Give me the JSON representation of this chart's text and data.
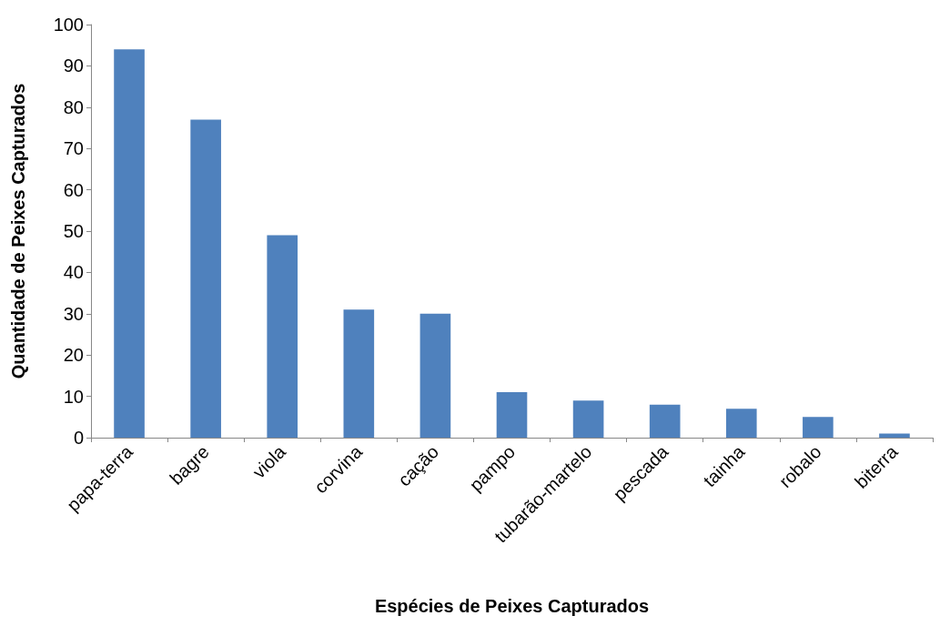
{
  "chart_data": {
    "type": "bar",
    "xlabel": "Espécies de Peixes Capturados",
    "ylabel": "Quantidade de Peixes Capturados",
    "categories": [
      "papa-terra",
      "bagre",
      "viola",
      "corvina",
      "cação",
      "pampo",
      "tubarão-martelo",
      "pescada",
      "tainha",
      "robalo",
      "biterra"
    ],
    "values": [
      94,
      77,
      49,
      31,
      30,
      11,
      9,
      8,
      7,
      5,
      1
    ],
    "color": "#4f81bd",
    "ylim": [
      0,
      100
    ],
    "yticks": [
      0,
      10,
      20,
      30,
      40,
      50,
      60,
      70,
      80,
      90,
      100
    ],
    "grid": false
  }
}
